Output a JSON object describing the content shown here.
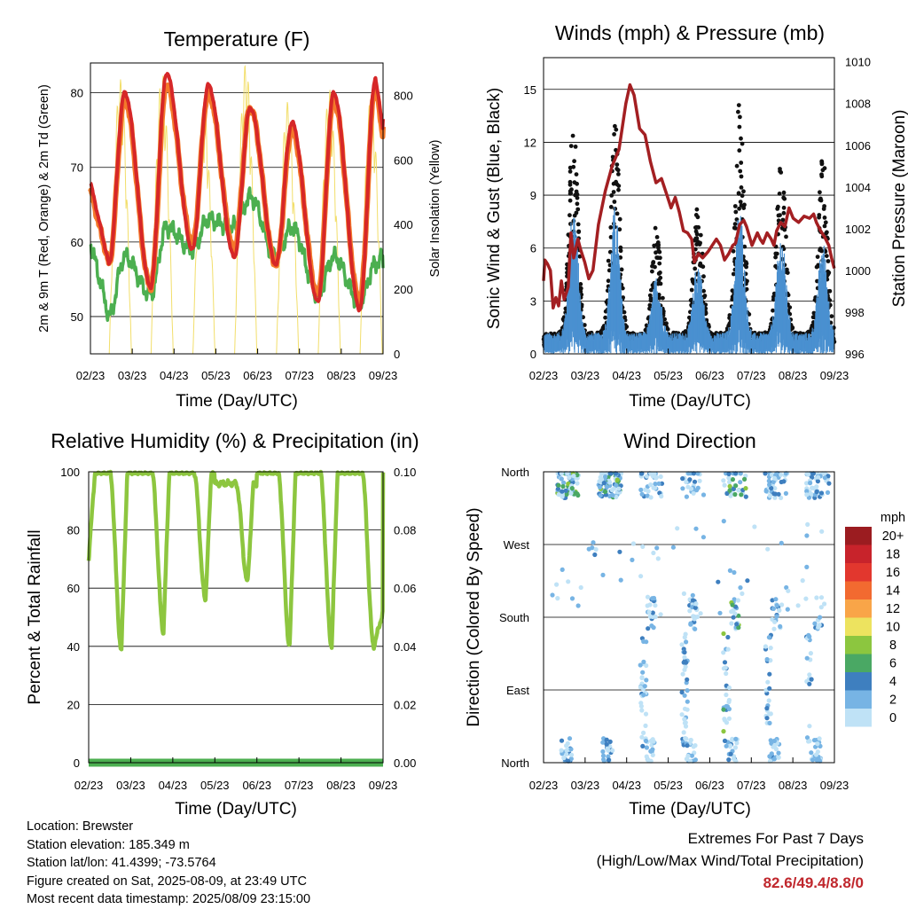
{
  "x_ticks": [
    "02/23",
    "03/23",
    "04/23",
    "05/23",
    "06/23",
    "07/23",
    "08/23",
    "09/23"
  ],
  "colors": {
    "temp2m": "#d62728",
    "temp9m": "#f4792a",
    "td2m": "#4caf50",
    "solar": "#f2de6a",
    "gust": "#111111",
    "wind": "#4a90d0",
    "pressure": "#a31f22",
    "rh": "#8dc63f",
    "precip": "#4caf50"
  },
  "chart_data": [
    {
      "id": "temperature",
      "type": "line",
      "title": "Temperature (F)",
      "xlabel": "Time (Day/UTC)",
      "ylabel": "2m & 9m T (Red, Orange) & 2m Td (Green)",
      "y2label": "Solar Insolation (Yellow)",
      "ylim": [
        45,
        84
      ],
      "y_ticks": [
        50,
        60,
        70,
        80
      ],
      "y2lim": [
        0,
        900
      ],
      "y2_ticks": [
        0,
        200,
        400,
        600,
        800
      ],
      "x": [
        "02/23",
        "03/23",
        "04/23",
        "05/23",
        "06/23",
        "07/23",
        "08/23",
        "09/23"
      ],
      "series": [
        {
          "key": "temp2m",
          "axis": "y",
          "daily_min": [
            57,
            54,
            59,
            58,
            57,
            52,
            51,
            55
          ],
          "daily_max": [
            80,
            82.6,
            81,
            78,
            76,
            80,
            82
          ],
          "start": 68,
          "end": 75
        },
        {
          "key": "temp9m",
          "axis": "y",
          "daily_min": [
            57,
            54,
            60,
            59,
            57,
            53,
            52,
            55
          ],
          "daily_max": [
            79,
            81,
            80,
            78,
            75,
            79,
            81
          ],
          "start": 67,
          "end": 74
        },
        {
          "key": "td2m",
          "axis": "y",
          "daily_min": [
            50,
            53,
            59,
            62,
            58,
            53,
            52,
            55
          ],
          "daily_max": [
            58,
            62,
            63,
            66,
            62,
            58,
            57,
            58
          ],
          "start": 60,
          "end": 58
        },
        {
          "key": "solar",
          "axis": "y2",
          "daily_peak": [
            850,
            870,
            760,
            900,
            780,
            820,
            800
          ],
          "start": 0,
          "end": 0
        }
      ]
    },
    {
      "id": "winds",
      "type": "scatter",
      "title": "Winds (mph) & Pressure (mb)",
      "xlabel": "Time (Day/UTC)",
      "ylabel": "Sonic Wind & Gust (Blue, Black)",
      "y2label": "Station Pressure (Maroon)",
      "ylim": [
        0,
        16.8
      ],
      "y_ticks": [
        0,
        3,
        6,
        9,
        12,
        15
      ],
      "y2lim": [
        996,
        1010.2
      ],
      "y2_ticks": [
        996,
        998,
        1000,
        1002,
        1004,
        1006,
        1008,
        1010
      ],
      "x": [
        "02/23",
        "03/23",
        "04/23",
        "05/23",
        "06/23",
        "07/23",
        "08/23",
        "09/23"
      ],
      "series": [
        {
          "key": "gust",
          "axis": "y",
          "daily_max": [
            13.5,
            13.5,
            7.5,
            8.5,
            14.5,
            11.5,
            11.5,
            9
          ]
        },
        {
          "key": "wind",
          "axis": "y",
          "daily_max": [
            8.8,
            8.5,
            4.5,
            5.5,
            8.5,
            7,
            6.5,
            5
          ]
        },
        {
          "key": "pressure",
          "axis": "y2",
          "points": [
            [
              0,
              999.5
            ],
            [
              0.1,
              1000.5
            ],
            [
              0.3,
              1000.3
            ],
            [
              0.5,
              1000
            ],
            [
              0.7,
              998.2
            ],
            [
              0.9,
              998.7
            ],
            [
              1.1,
              998.3
            ],
            [
              1.3,
              999.5
            ],
            [
              1.5,
              998.6
            ],
            [
              1.8,
              999.2
            ],
            [
              2.0,
              1001.8
            ],
            [
              2.2,
              1000.6
            ],
            [
              2.5,
              1001.5
            ],
            [
              2.7,
              1001
            ],
            [
              3.0,
              1000.4
            ],
            [
              3.3,
              999.6
            ],
            [
              3.6,
              1000
            ],
            [
              4.0,
              1002.2
            ],
            [
              4.5,
              1003.8
            ],
            [
              5.0,
              1005
            ],
            [
              5.5,
              1005.8
            ],
            [
              6.0,
              1008
            ],
            [
              6.3,
              1008.9
            ],
            [
              6.6,
              1008.4
            ],
            [
              7.0,
              1006.8
            ],
            [
              7.4,
              1006.5
            ],
            [
              7.8,
              1005.2
            ],
            [
              8.2,
              1004.2
            ],
            [
              8.6,
              1004.4
            ],
            [
              9.0,
              1003.6
            ],
            [
              9.3,
              1003
            ],
            [
              9.6,
              1003.5
            ],
            [
              9.9,
              1002.8
            ],
            [
              10.2,
              1001.9
            ],
            [
              10.5,
              1001.8
            ],
            [
              10.8,
              1001.5
            ],
            [
              11.0,
              1000.4
            ],
            [
              11.3,
              1000.8
            ],
            [
              11.6,
              1000.6
            ],
            [
              12.0,
              1000.9
            ],
            [
              12.3,
              1001.2
            ],
            [
              12.6,
              1001.5
            ],
            [
              12.9,
              1001.2
            ],
            [
              13.2,
              1000.5
            ],
            [
              13.5,
              1000.8
            ],
            [
              13.8,
              1001.2
            ],
            [
              14.0,
              1001.3
            ],
            [
              14.3,
              1002.2
            ],
            [
              14.6,
              1002.4
            ],
            [
              14.8,
              1002.1
            ],
            [
              15.2,
              1001.2
            ],
            [
              15.6,
              1001.8
            ],
            [
              15.8,
              1001.5
            ],
            [
              16.0,
              1001.3
            ],
            [
              16.3,
              1001.8
            ],
            [
              16.6,
              1001.5
            ],
            [
              16.8,
              1001.2
            ],
            [
              17.0,
              1001.9
            ],
            [
              17.3,
              1002.3
            ],
            [
              17.6,
              1002.1
            ],
            [
              17.9,
              1003
            ],
            [
              18.2,
              1002.5
            ],
            [
              18.6,
              1002.3
            ],
            [
              19.0,
              1002.6
            ],
            [
              19.4,
              1002.5
            ],
            [
              19.7,
              1002.7
            ],
            [
              19.9,
              1002.3
            ],
            [
              20.2,
              1001.9
            ],
            [
              20.5,
              1001.6
            ],
            [
              20.8,
              1001.2
            ],
            [
              21.0,
              1000.6
            ],
            [
              21.2,
              1000.1
            ]
          ]
        }
      ]
    },
    {
      "id": "humidity",
      "type": "line",
      "title": "Relative Humidity (%) & Precipitation (in)",
      "xlabel": "Time (Day/UTC)",
      "ylabel": "Percent & Total Rainfall",
      "ylim": [
        0,
        100
      ],
      "y_ticks": [
        0,
        20,
        40,
        60,
        80,
        100
      ],
      "y2lim": [
        0,
        0.1
      ],
      "y2_ticks": [
        "0.00",
        "0.02",
        "0.04",
        "0.06",
        "0.08",
        "0.10"
      ],
      "x": [
        "02/23",
        "03/23",
        "04/23",
        "05/23",
        "06/23",
        "07/23",
        "08/23",
        "09/23"
      ],
      "series": [
        {
          "key": "rh",
          "axis": "y",
          "daily_min": [
            39,
            45,
            56,
            62,
            40,
            40,
            40
          ],
          "daily_max": [
            100,
            100,
            100,
            96,
            100,
            100
          ],
          "start": 70,
          "end": 52
        },
        {
          "key": "precip",
          "axis": "y2",
          "total": 0
        }
      ]
    },
    {
      "id": "direction",
      "type": "scatter",
      "title": "Wind Direction",
      "xlabel": "Time (Day/UTC)",
      "ylabel": "Direction (Colored By Speed)",
      "y_ticks": [
        "North",
        "East",
        "South",
        "West",
        "North"
      ],
      "ylim_deg": [
        0,
        360
      ],
      "x": [
        "02/23",
        "03/23",
        "04/23",
        "05/23",
        "06/23",
        "07/23",
        "08/23",
        "09/23"
      ],
      "legend": {
        "title": "mph",
        "labels": [
          "20+",
          "18",
          "16",
          "14",
          "12",
          "10",
          "8",
          "6",
          "4",
          "2",
          "0"
        ],
        "colors": [
          "#9b1c20",
          "#c8232b",
          "#e2372e",
          "#f26a30",
          "#f9a548",
          "#ede35f",
          "#8cc63f",
          "#4aa864",
          "#3e7fbf",
          "#77b4e4",
          "#bfe2f6"
        ]
      }
    }
  ],
  "info": {
    "location": "Location: Brewster",
    "elevation": "Station elevation: 185.349 m",
    "latlon": "Station lat/lon: 41.4399; -73.5764",
    "created": "Figure created on Sat, 2025-08-09, at 23:49 UTC",
    "recent": "Most recent data timestamp: 2025/08/09 23:15:00"
  },
  "extremes": {
    "title": "Extremes For Past 7 Days",
    "subtitle": "(High/Low/Max Wind/Total Precipitation)",
    "values": "82.6/49.4/8.8/0"
  }
}
